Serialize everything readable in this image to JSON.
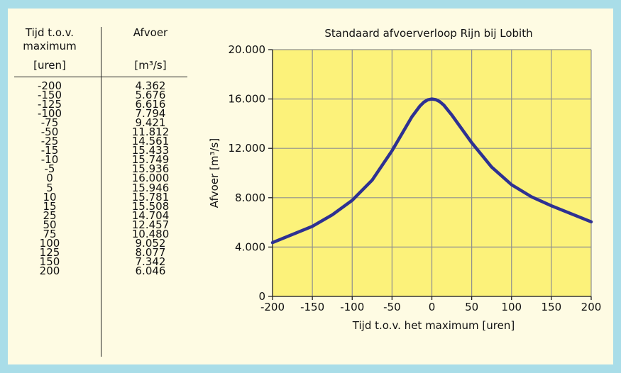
{
  "table": {
    "time_header_line1": "Tijd t.o.v.",
    "time_header_line2": "maximum",
    "time_header_line3": "[uren]",
    "flow_header": "Afvoer",
    "flow_unit": "[m³/s]",
    "rows": [
      {
        "time": "-200",
        "flow": "4.362"
      },
      {
        "time": "-150",
        "flow": "5.676"
      },
      {
        "time": "-125",
        "flow": "6.616"
      },
      {
        "time": "-100",
        "flow": "7.794"
      },
      {
        "time": "-75",
        "flow": "9.421"
      },
      {
        "time": "-50",
        "flow": "11.812"
      },
      {
        "time": "-25",
        "flow": "14.561"
      },
      {
        "time": "-15",
        "flow": "15.433"
      },
      {
        "time": "-10",
        "flow": "15.749"
      },
      {
        "time": "-5",
        "flow": "15.936"
      },
      {
        "time": "0",
        "flow": "16.000"
      },
      {
        "time": "5",
        "flow": "15.946"
      },
      {
        "time": "10",
        "flow": "15.781"
      },
      {
        "time": "15",
        "flow": "15.508"
      },
      {
        "time": "25",
        "flow": "14.704"
      },
      {
        "time": "50",
        "flow": "12.457"
      },
      {
        "time": "75",
        "flow": "10.480"
      },
      {
        "time": "100",
        "flow": "9.052"
      },
      {
        "time": "125",
        "flow": "8.077"
      },
      {
        "time": "150",
        "flow": "7.342"
      },
      {
        "time": "200",
        "flow": "6.046"
      }
    ]
  },
  "colors": {
    "frame": "#a9dde8",
    "panel": "#fefbe3",
    "plot_fill": "#fcf27a",
    "grid": "#8f8f8f",
    "line": "#2e3192"
  },
  "chart_data": {
    "type": "line",
    "title": "Standaard afvoerverloop Rijn bij Lobith",
    "xlabel": "Tijd t.o.v. het maximum [uren]",
    "ylabel": "Afvoer [m³/s]",
    "xlim": [
      -200,
      200
    ],
    "ylim": [
      0,
      20000
    ],
    "grid": true,
    "x_ticks": [
      -200,
      -150,
      -100,
      -50,
      0,
      50,
      100,
      150,
      200
    ],
    "x_tick_labels": [
      "-200",
      "-150",
      "-100",
      "-50",
      "0",
      "50",
      "100",
      "150",
      "200"
    ],
    "y_ticks": [
      0,
      4000,
      8000,
      12000,
      16000,
      20000
    ],
    "y_tick_labels": [
      "0",
      "4.000",
      "8.000",
      "12.000",
      "16.000",
      "20.000"
    ],
    "series": [
      {
        "x": [
          -200,
          -150,
          -125,
          -100,
          -75,
          -50,
          -25,
          -15,
          -10,
          -5,
          0,
          5,
          10,
          15,
          25,
          50,
          75,
          100,
          125,
          150,
          200
        ],
        "y": [
          4362,
          5676,
          6616,
          7794,
          9421,
          11812,
          14561,
          15433,
          15749,
          15936,
          16000,
          15946,
          15781,
          15508,
          14704,
          12457,
          10480,
          9052,
          8077,
          7342,
          6046
        ]
      }
    ]
  }
}
